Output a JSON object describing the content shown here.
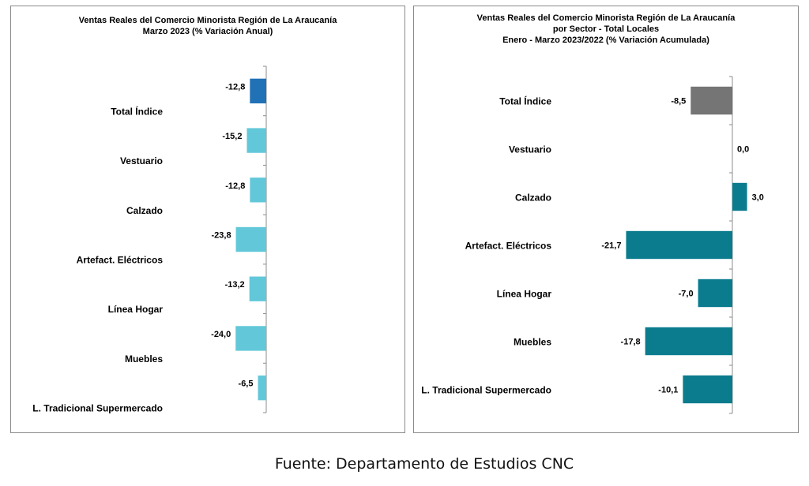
{
  "footer": "Fuente: Departamento de Estudios CNC",
  "chart_data": [
    {
      "type": "bar",
      "orientation": "horizontal",
      "title": [
        "Ventas Reales del Comercio Minorista  Región de La Araucanía",
        "Marzo 2023 (% Variación Anual)"
      ],
      "categories": [
        "Total Índice",
        "Vestuario",
        "Calzado",
        "Artefact. Eléctricos",
        "Línea Hogar",
        "Muebles",
        "L. Tradicional Supermercado"
      ],
      "values": [
        -12.8,
        -15.2,
        -12.8,
        -23.8,
        -13.2,
        -24.0,
        -6.5
      ],
      "data_labels": [
        "-12,8",
        "-15,2",
        "-12,8",
        "-23,8",
        "-13,2",
        "-24,0",
        "-6,5"
      ],
      "colors": [
        "#2071b5",
        "#62c8d9",
        "#62c8d9",
        "#62c8d9",
        "#62c8d9",
        "#62c8d9",
        "#62c8d9"
      ],
      "xlim": [
        -200,
        0
      ],
      "grid": false,
      "legend": "none"
    },
    {
      "type": "bar",
      "orientation": "horizontal",
      "title": [
        "Ventas Reales del Comercio Minorista Región de La Araucanía",
        "por Sector - Total Locales",
        "Enero - Marzo 2023/2022 (% Variación Acumulada)"
      ],
      "categories": [
        "Total Índice",
        "Vestuario",
        "Calzado",
        "Artefact. Eléctricos",
        "Línea Hogar",
        "Muebles",
        "L. Tradicional Supermercado"
      ],
      "values": [
        -8.5,
        0.0,
        3.0,
        -21.7,
        -7.0,
        -17.8,
        -10.1
      ],
      "data_labels": [
        "-8,5",
        "0,0",
        "3,0",
        "-21,7",
        "-7,0",
        "-17,8",
        "-10,1"
      ],
      "colors": [
        "#757575",
        "#0b7c8e",
        "#0b7c8e",
        "#0b7c8e",
        "#0b7c8e",
        "#0b7c8e",
        "#0b7c8e"
      ],
      "xlim": [
        -40,
        10
      ],
      "grid": false,
      "legend": "none"
    }
  ]
}
